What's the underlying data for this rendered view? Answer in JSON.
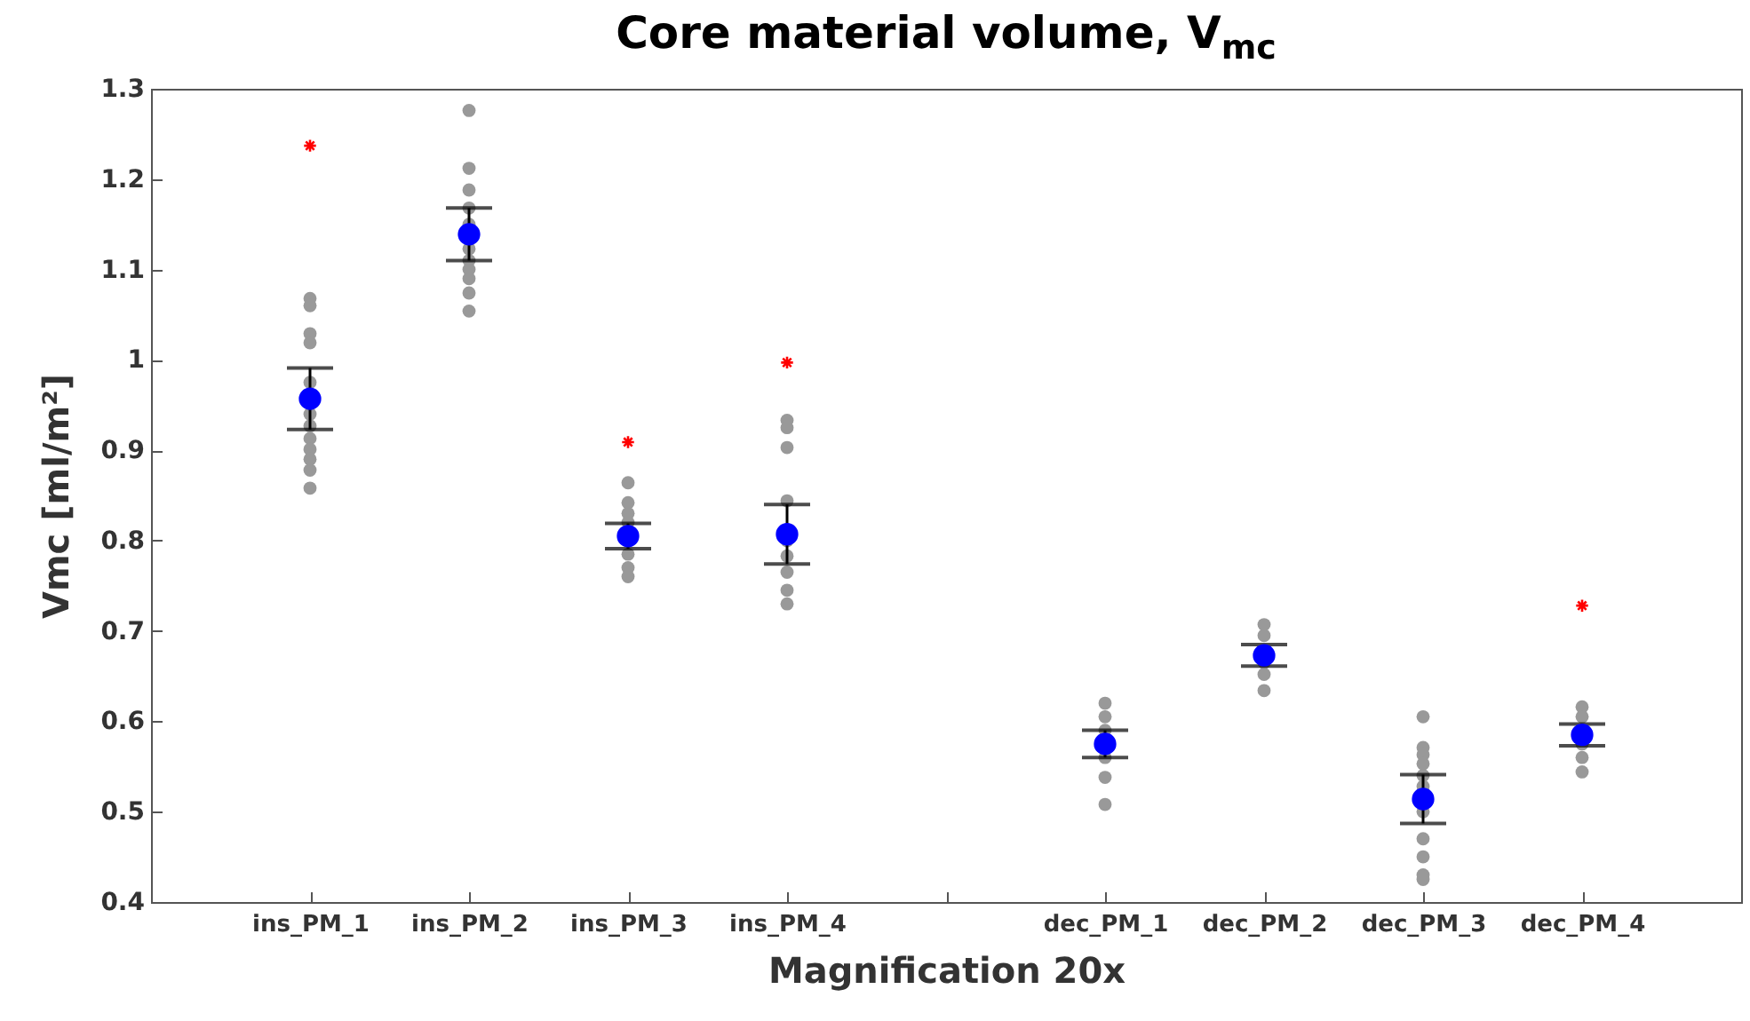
{
  "chart_data": {
    "type": "scatter",
    "title": "Core material volume, V$_{mc}$",
    "xlabel": "Magnification 20x",
    "ylabel": "Vmc [ml/m²]",
    "categories": [
      "ins_PM_1",
      "ins_PM_2",
      "ins_PM_3",
      "ins_PM_4",
      null,
      "dec_PM_1",
      "dec_PM_2",
      "dec_PM_3",
      "dec_PM_4"
    ],
    "ylim": [
      0.4,
      1.3
    ],
    "yticks": [
      0.4,
      0.5,
      0.6,
      0.7,
      0.8,
      0.9,
      1,
      1.1,
      1.2,
      1.3
    ],
    "series": [
      {
        "color": "#999999",
        "marker": "circle",
        "x": [
          "ins_PM_1",
          "ins_PM_1",
          "ins_PM_1",
          "ins_PM_1",
          "ins_PM_1",
          "ins_PM_1",
          "ins_PM_1",
          "ins_PM_1",
          "ins_PM_1",
          "ins_PM_1",
          "ins_PM_1",
          "ins_PM_1",
          "ins_PM_2",
          "ins_PM_2",
          "ins_PM_2",
          "ins_PM_2",
          "ins_PM_2",
          "ins_PM_2",
          "ins_PM_2",
          "ins_PM_2",
          "ins_PM_2",
          "ins_PM_2",
          "ins_PM_2",
          "ins_PM_3",
          "ins_PM_3",
          "ins_PM_3",
          "ins_PM_3",
          "ins_PM_3",
          "ins_PM_3",
          "ins_PM_3",
          "ins_PM_4",
          "ins_PM_4",
          "ins_PM_4",
          "ins_PM_4",
          "ins_PM_4",
          "ins_PM_4",
          "ins_PM_4",
          "ins_PM_4",
          "ins_PM_4",
          "dec_PM_1",
          "dec_PM_1",
          "dec_PM_1",
          "dec_PM_1",
          "dec_PM_1",
          "dec_PM_1",
          "dec_PM_2",
          "dec_PM_2",
          "dec_PM_2",
          "dec_PM_2",
          "dec_PM_2",
          "dec_PM_2",
          "dec_PM_3",
          "dec_PM_3",
          "dec_PM_3",
          "dec_PM_3",
          "dec_PM_3",
          "dec_PM_3",
          "dec_PM_3",
          "dec_PM_3",
          "dec_PM_3",
          "dec_PM_3",
          "dec_PM_3",
          "dec_PM_4",
          "dec_PM_4",
          "dec_PM_4",
          "dec_PM_4",
          "dec_PM_4"
        ],
        "values": [
          1.068,
          1.06,
          1.029,
          1.019,
          0.975,
          0.94,
          0.927,
          0.913,
          0.901,
          0.89,
          0.878,
          0.858,
          1.276,
          1.212,
          1.188,
          1.168,
          1.15,
          1.123,
          1.11,
          1.1,
          1.09,
          1.074,
          1.054,
          0.864,
          0.842,
          0.83,
          0.82,
          0.785,
          0.77,
          0.76,
          0.933,
          0.925,
          0.903,
          0.844,
          0.8,
          0.783,
          0.765,
          0.745,
          0.73,
          0.62,
          0.605,
          0.59,
          0.56,
          0.538,
          0.508,
          0.707,
          0.695,
          null,
          0.665,
          0.652,
          0.634,
          0.605,
          0.571,
          0.563,
          0.553,
          0.54,
          0.528,
          0.5,
          0.47,
          0.45,
          0.43,
          0.425,
          0.616,
          0.605,
          0.575,
          0.56,
          0.544
        ]
      },
      {
        "color": "#ff0000",
        "marker": "cross",
        "x": [
          "ins_PM_1",
          "ins_PM_3",
          "ins_PM_4",
          "dec_PM_4"
        ],
        "values": [
          1.237,
          0.909,
          0.997,
          0.728
        ]
      },
      {
        "color": "#0000ff",
        "marker": "circle",
        "values": [
          0.957,
          1.139,
          0.805,
          0.807,
          null,
          0.575,
          0.673,
          0.514,
          0.585
        ],
        "errors": [
          0.034,
          0.029,
          0.014,
          0.033,
          null,
          0.015,
          0.012,
          0.027,
          0.012
        ]
      }
    ]
  }
}
